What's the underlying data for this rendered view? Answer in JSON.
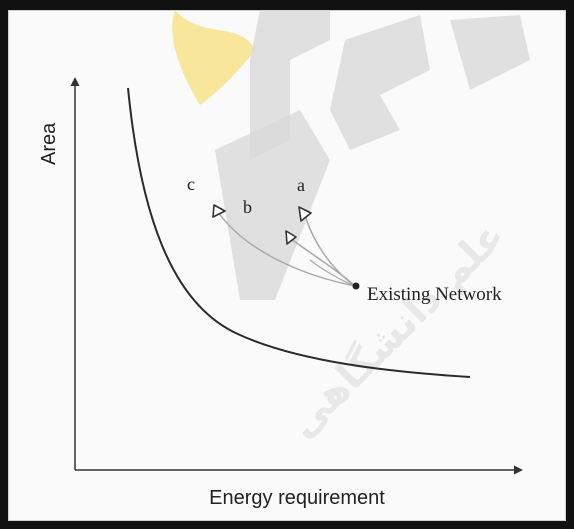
{
  "diagram": {
    "axes": {
      "x_title": "Energy requirement",
      "y_title": "Area"
    },
    "retrofit_paths": [
      {
        "label": "a"
      },
      {
        "label": "b"
      },
      {
        "label": "c"
      }
    ],
    "existing_network_label": "Existing Network"
  },
  "watermark": {
    "text": "علم دانشگاهی"
  },
  "colors": {
    "frame": "#111111",
    "curve": "#2a2a2a",
    "path": "#a9a9a9",
    "watermark_red": "#d9d9d9",
    "watermark_yellow": "#f5d54a"
  }
}
